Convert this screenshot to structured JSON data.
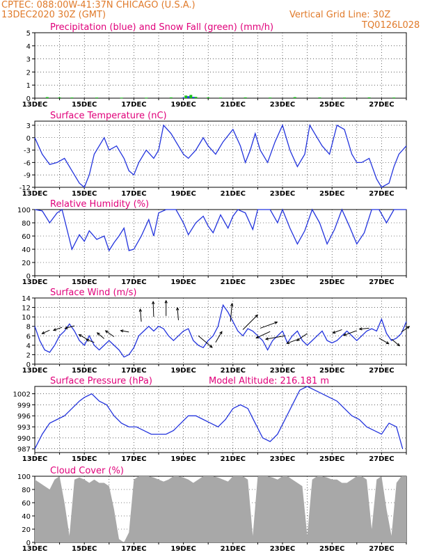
{
  "header": {
    "line1": "CPTEC:   088:00W-41:37N   CHICAGO (U.S.A.)",
    "line2": "13DEC2020 30Z (GMT)",
    "grid_line": "Vertical Grid Line: 30Z",
    "code": "TQ0126L028"
  },
  "colors": {
    "header": "#e07a2a",
    "title": "#e0007a",
    "precip": "#1f3fe0",
    "snow": "#18c018",
    "line": "#2233dd",
    "wind_arrow": "#000000",
    "cloud_fill": "#a8a8a8",
    "grid": "#000000"
  },
  "x_ticks": [
    "13DEC",
    "15DEC",
    "17DEC",
    "19DEC",
    "21DEC",
    "23DEC",
    "25DEC",
    "27DEC"
  ],
  "chart_data": [
    {
      "type": "bar",
      "title": "Precipitation (blue) and Snow Fall (green) (mm/h)",
      "ylim": [
        0,
        5
      ],
      "yticks": [
        "5",
        "4",
        "3",
        "2",
        "1",
        "0"
      ],
      "series": [
        {
          "name": "precipitation",
          "x": [
            6.0,
            6.2,
            6.4
          ],
          "values": [
            0.05,
            0.15,
            0.1
          ]
        },
        {
          "name": "snow_fall",
          "x": [
            0.5,
            1.0,
            1.5,
            2.5,
            3.5,
            4.5,
            5.5,
            6.1,
            6.3,
            6.5,
            7.0,
            7.5,
            8.5,
            9.5,
            10.5,
            11.5,
            12.5,
            13.5,
            14.5
          ],
          "values": [
            0.08,
            0.06,
            0.05,
            0.05,
            0.04,
            0.04,
            0.06,
            0.2,
            0.25,
            0.1,
            0.06,
            0.05,
            0.06,
            0.05,
            0.08,
            0.06,
            0.05,
            0.06,
            0.05
          ]
        }
      ]
    },
    {
      "type": "line",
      "title": "Surface Temperature (nC)",
      "ylim": [
        -12,
        4
      ],
      "yticks": [
        "3",
        "0",
        "-3",
        "-6",
        "-9",
        "-12"
      ],
      "x": [
        0,
        0.3,
        0.6,
        0.9,
        1.2,
        1.5,
        1.8,
        2.0,
        2.2,
        2.4,
        2.6,
        2.8,
        3.0,
        3.3,
        3.6,
        3.8,
        4.0,
        4.2,
        4.5,
        4.8,
        5.0,
        5.2,
        5.5,
        5.7,
        6.0,
        6.2,
        6.5,
        6.8,
        7.0,
        7.3,
        7.6,
        8.0,
        8.3,
        8.5,
        8.7,
        8.9,
        9.1,
        9.4,
        9.7,
        10.0,
        10.3,
        10.6,
        10.9,
        11.1,
        11.3,
        11.6,
        11.9,
        12.2,
        12.5,
        12.8,
        13.0,
        13.2,
        13.5,
        13.8,
        14.0,
        14.3,
        14.5,
        14.7,
        15.0
      ],
      "values": [
        0,
        -4,
        -6.5,
        -6,
        -5,
        -8,
        -11,
        -12,
        -9,
        -4,
        -2,
        0,
        -3,
        -2,
        -5,
        -8,
        -9,
        -6,
        -3,
        -5,
        -3,
        3,
        1,
        -1,
        -4,
        -5,
        -3,
        0,
        -2,
        -4,
        -1,
        2,
        -2,
        -6,
        -3,
        1,
        -3,
        -6,
        -1,
        3,
        -3,
        -7,
        -4,
        3,
        1,
        -2,
        -4,
        3,
        2,
        -4,
        -6,
        -6,
        -5,
        -10,
        -12,
        -11,
        -7,
        -4,
        -2
      ]
    },
    {
      "type": "line",
      "title": "Relative Humidity (%)",
      "ylim": [
        0,
        100
      ],
      "yticks": [
        "100",
        "80",
        "60",
        "40",
        "20",
        "0"
      ],
      "x": [
        0,
        0.3,
        0.6,
        0.9,
        1.1,
        1.3,
        1.5,
        1.8,
        2.0,
        2.2,
        2.5,
        2.8,
        3.0,
        3.2,
        3.4,
        3.6,
        3.8,
        4.0,
        4.3,
        4.6,
        4.8,
        5.0,
        5.3,
        5.5,
        5.7,
        6.0,
        6.2,
        6.5,
        6.8,
        7.0,
        7.2,
        7.5,
        7.8,
        8.0,
        8.2,
        8.5,
        8.8,
        9.0,
        9.2,
        9.5,
        9.8,
        10.0,
        10.3,
        10.6,
        10.9,
        11.2,
        11.5,
        11.8,
        12.1,
        12.4,
        12.7,
        13.0,
        13.3,
        13.6,
        13.9,
        14.2,
        14.5,
        14.8,
        15.0
      ],
      "values": [
        100,
        98,
        80,
        95,
        100,
        70,
        40,
        62,
        52,
        68,
        55,
        60,
        38,
        50,
        60,
        72,
        38,
        40,
        60,
        85,
        60,
        95,
        100,
        100,
        100,
        80,
        62,
        80,
        90,
        75,
        65,
        92,
        72,
        90,
        100,
        95,
        70,
        100,
        100,
        100,
        80,
        100,
        72,
        48,
        68,
        100,
        80,
        48,
        70,
        100,
        75,
        48,
        65,
        100,
        100,
        80,
        100,
        100,
        100
      ]
    },
    {
      "type": "line",
      "title": "Surface Wind (m/s)",
      "ylim": [
        0,
        14
      ],
      "yticks": [
        "14",
        "12",
        "10",
        "8",
        "6",
        "4",
        "2",
        "0"
      ],
      "x": [
        0,
        0.2,
        0.4,
        0.6,
        0.8,
        1.0,
        1.2,
        1.4,
        1.6,
        1.8,
        2.0,
        2.2,
        2.4,
        2.6,
        2.8,
        3.0,
        3.2,
        3.4,
        3.6,
        3.8,
        4.0,
        4.2,
        4.4,
        4.6,
        4.8,
        5.0,
        5.2,
        5.4,
        5.6,
        5.8,
        6.0,
        6.2,
        6.4,
        6.6,
        6.8,
        7.0,
        7.2,
        7.4,
        7.6,
        7.8,
        8.0,
        8.2,
        8.4,
        8.6,
        8.8,
        9.0,
        9.2,
        9.4,
        9.6,
        9.8,
        10.0,
        10.2,
        10.4,
        10.6,
        10.8,
        11.0,
        11.2,
        11.4,
        11.6,
        11.8,
        12.0,
        12.2,
        12.4,
        12.6,
        12.8,
        13.0,
        13.2,
        13.4,
        13.6,
        13.8,
        14.0,
        14.2,
        14.4,
        14.6,
        14.8,
        15.0
      ],
      "values": [
        8,
        5,
        3,
        2.5,
        4,
        6,
        7,
        8.5,
        7,
        5,
        4,
        6,
        4,
        3,
        4,
        5,
        4,
        3,
        1.5,
        2,
        3.5,
        6,
        7,
        8,
        7,
        8,
        7.5,
        6,
        5,
        6,
        7,
        7.5,
        5,
        4,
        3.5,
        5,
        6,
        8,
        12.5,
        11,
        9,
        7,
        6,
        7.5,
        7,
        6,
        5,
        3,
        5,
        6,
        7,
        4.5,
        6,
        7,
        5,
        4,
        5,
        6,
        7,
        5,
        4.5,
        5,
        6,
        7,
        6,
        5,
        6,
        7,
        7.5,
        7,
        9.5,
        6.5,
        5,
        5.5,
        6.5,
        9
      ],
      "arrows": [
        {
          "x": 0.6,
          "y": 7.2,
          "angle": 205,
          "len": 12
        },
        {
          "x": 1.1,
          "y": 7.8,
          "angle": 200,
          "len": 13
        },
        {
          "x": 1.6,
          "y": 8.1,
          "angle": 195,
          "len": 14
        },
        {
          "x": 2.1,
          "y": 5.3,
          "angle": 150,
          "len": 13
        },
        {
          "x": 2.4,
          "y": 4.6,
          "angle": 160,
          "len": 12
        },
        {
          "x": 2.8,
          "y": 5.4,
          "angle": 140,
          "len": 13
        },
        {
          "x": 3.2,
          "y": 5.8,
          "angle": 145,
          "len": 15
        },
        {
          "x": 3.8,
          "y": 6.8,
          "angle": 170,
          "len": 12
        },
        {
          "x": 4.3,
          "y": 9.0,
          "angle": 95,
          "len": 18
        },
        {
          "x": 4.8,
          "y": 10.0,
          "angle": 92,
          "len": 22
        },
        {
          "x": 5.3,
          "y": 10.2,
          "angle": 90,
          "len": 22
        },
        {
          "x": 5.8,
          "y": 9.3,
          "angle": 95,
          "len": 18
        },
        {
          "x": 6.6,
          "y": 6.0,
          "angle": 320,
          "len": 26
        },
        {
          "x": 7.3,
          "y": 4.6,
          "angle": 60,
          "len": 18
        },
        {
          "x": 7.9,
          "y": 9.0,
          "angle": 85,
          "len": 26
        },
        {
          "x": 8.4,
          "y": 7.3,
          "angle": 45,
          "len": 30
        },
        {
          "x": 9.1,
          "y": 7.6,
          "angle": 20,
          "len": 26
        },
        {
          "x": 9.5,
          "y": 6.9,
          "angle": 205,
          "len": 22
        },
        {
          "x": 10.1,
          "y": 6.0,
          "angle": 190,
          "len": 28
        },
        {
          "x": 10.6,
          "y": 5.2,
          "angle": 200,
          "len": 16
        },
        {
          "x": 11.0,
          "y": 6.5,
          "angle": 215,
          "len": 18
        },
        {
          "x": 12.4,
          "y": 7.3,
          "angle": 200,
          "len": 14
        },
        {
          "x": 13.0,
          "y": 7.1,
          "angle": 200,
          "len": 20
        },
        {
          "x": 13.5,
          "y": 7.6,
          "angle": 185,
          "len": 14
        },
        {
          "x": 13.9,
          "y": 5.5,
          "angle": 330,
          "len": 16
        },
        {
          "x": 14.4,
          "y": 5.3,
          "angle": 320,
          "len": 15
        },
        {
          "x": 14.8,
          "y": 6.8,
          "angle": 35,
          "len": 14
        }
      ]
    },
    {
      "type": "line",
      "title": "Surface Pressure (hPa)",
      "annotation": "Model Altitude: 216.181 m",
      "ylim": [
        986,
        1004
      ],
      "yticks": [
        "1002",
        "999",
        "996",
        "993",
        "990",
        "987"
      ],
      "x": [
        0,
        0.3,
        0.6,
        0.9,
        1.2,
        1.5,
        1.8,
        2.0,
        2.3,
        2.6,
        2.9,
        3.2,
        3.5,
        3.8,
        4.1,
        4.4,
        4.7,
        5.0,
        5.3,
        5.6,
        5.9,
        6.2,
        6.5,
        6.8,
        7.1,
        7.4,
        7.7,
        8.0,
        8.3,
        8.6,
        8.9,
        9.2,
        9.5,
        9.8,
        10.1,
        10.4,
        10.7,
        11.0,
        11.3,
        11.6,
        11.9,
        12.2,
        12.5,
        12.8,
        13.1,
        13.4,
        13.7,
        14.0,
        14.3,
        14.6,
        14.85
      ],
      "values": [
        987,
        991,
        994,
        995,
        996,
        998,
        1000,
        1001,
        1002,
        1000,
        999,
        996,
        994,
        993,
        993,
        992,
        991,
        991,
        991,
        992,
        994,
        996,
        996,
        995,
        994,
        993,
        995,
        998,
        999,
        998,
        994,
        990,
        989,
        991,
        995,
        999,
        1003,
        1004,
        1003,
        1002,
        1001,
        1000,
        998,
        996,
        995,
        993,
        992,
        991,
        994,
        993,
        987
      ]
    },
    {
      "type": "area",
      "title": "Cloud Cover (%)",
      "ylim": [
        0,
        100
      ],
      "yticks": [
        "100",
        "80",
        "60",
        "40",
        "20",
        "0"
      ],
      "x": [
        0,
        0.2,
        0.4,
        0.6,
        0.8,
        1.0,
        1.2,
        1.4,
        1.6,
        1.8,
        2.0,
        2.2,
        2.4,
        2.6,
        2.8,
        3.0,
        3.2,
        3.4,
        3.6,
        3.8,
        4.0,
        4.2,
        4.4,
        4.6,
        4.8,
        5.0,
        5.2,
        5.4,
        5.6,
        5.8,
        6.0,
        6.2,
        6.4,
        6.6,
        6.8,
        7.0,
        7.2,
        7.4,
        7.6,
        7.8,
        8.0,
        8.2,
        8.4,
        8.6,
        8.8,
        9.0,
        9.2,
        9.4,
        9.6,
        9.8,
        10.0,
        10.2,
        10.4,
        10.6,
        10.8,
        11.0,
        11.2,
        11.4,
        11.6,
        11.8,
        12.0,
        12.2,
        12.4,
        12.6,
        12.8,
        13.0,
        13.2,
        13.4,
        13.6,
        13.8,
        14.0,
        14.2,
        14.4,
        14.6,
        14.8,
        15.0
      ],
      "values": [
        95,
        90,
        85,
        80,
        95,
        100,
        60,
        10,
        95,
        98,
        95,
        90,
        95,
        90,
        90,
        85,
        50,
        5,
        0,
        15,
        95,
        100,
        100,
        100,
        98,
        95,
        92,
        95,
        100,
        100,
        98,
        95,
        90,
        95,
        100,
        100,
        100,
        98,
        95,
        92,
        100,
        100,
        100,
        95,
        10,
        100,
        100,
        100,
        98,
        95,
        100,
        100,
        95,
        90,
        85,
        10,
        95,
        100,
        100,
        98,
        95,
        95,
        90,
        90,
        95,
        100,
        100,
        95,
        20,
        95,
        100,
        50,
        10,
        90,
        100,
        100
      ]
    }
  ]
}
